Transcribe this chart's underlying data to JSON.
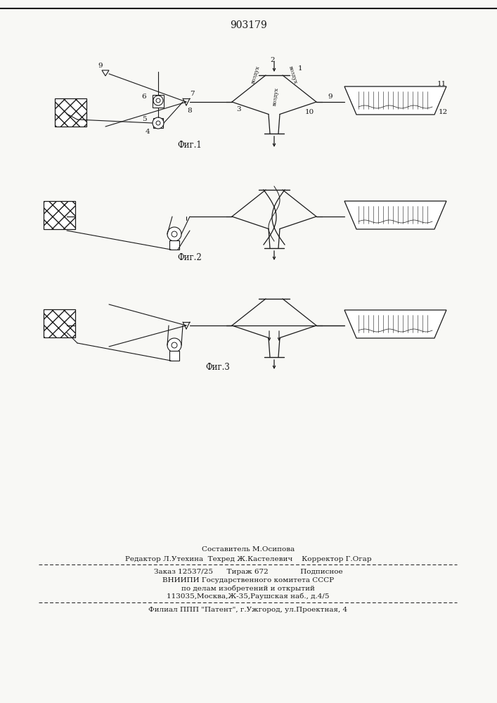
{
  "title_number": "903179",
  "background_color": "#f8f8f5",
  "fig1_label": "Фиг.1",
  "fig2_label": "Фиг.2",
  "fig3_label": "Фиг.3",
  "line_color": "#1a1a1a",
  "label_fontsize": 7.5,
  "fig_label_fontsize": 8.5,
  "footer_line1": "Составитель М.Осипова",
  "footer_line2": "Редактор Л.Утехина  Техред Ж.Кастелевич    Корректор Г.Огар",
  "footer_line3": "Заказ 12537/25      Тираж 672              Подписное",
  "footer_line4": "ВНИИПИ Государственного комитета СССР",
  "footer_line5": "по делам изобретений и открытий",
  "footer_line6": "113035,Москва,Ж-35,Раушская наб., д.4/5",
  "footer_line7": "Филиал ППП \"Патент\", г.Ужгород, ул.Проектная, 4",
  "vozdukh": "воздух"
}
